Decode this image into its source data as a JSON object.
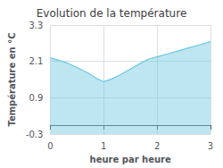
{
  "chart_data": {
    "type": "area",
    "title": "Evolution de la température",
    "xlabel": "heure par heure",
    "ylabel": "Température en °C",
    "x": [
      0,
      0.15,
      0.3,
      0.5,
      0.7,
      0.85,
      1.0,
      1.15,
      1.3,
      1.5,
      1.7,
      1.85,
      2.0,
      2.2,
      2.4,
      2.6,
      2.8,
      3.0
    ],
    "values": [
      2.22,
      2.14,
      2.06,
      1.9,
      1.72,
      1.55,
      1.43,
      1.52,
      1.65,
      1.85,
      2.05,
      2.18,
      2.25,
      2.35,
      2.45,
      2.55,
      2.65,
      2.75
    ],
    "color": "#6cc8e0",
    "xlim": [
      0,
      3
    ],
    "xticks": [
      0,
      1,
      2,
      3
    ],
    "ylim": [
      -0.3,
      3.3
    ],
    "yticks": [
      -0.3,
      0.9,
      2.1,
      3.3
    ],
    "grid": true
  }
}
